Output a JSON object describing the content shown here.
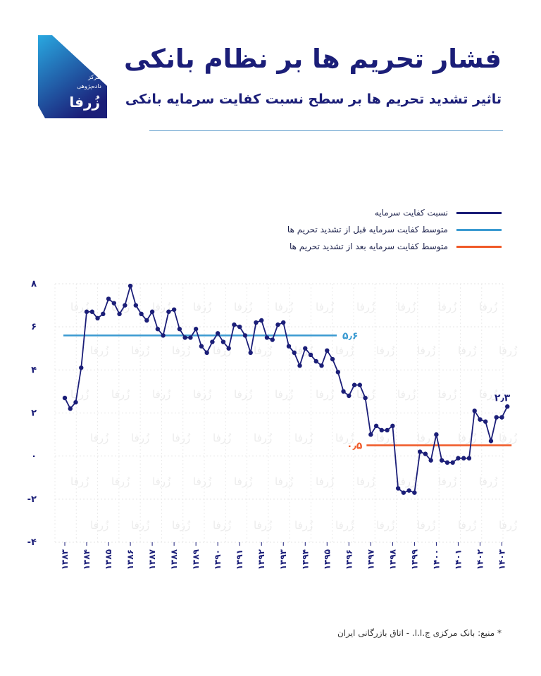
{
  "header": {
    "title": "فشار تحریم ها بر نظام بانکی",
    "subtitle": "تاثیر تشدید تحریم ها بر سطح نسبت کفایت سرمایه بانکی"
  },
  "logo": {
    "line1": "مرکز",
    "line2": "داده‌پژوهی",
    "brand": "زُرفا",
    "color_top": "#29a8e0",
    "color_bottom": "#1b1e78"
  },
  "legend": [
    {
      "label": "نسبت کفایت سرمایه",
      "color": "#1b1e78"
    },
    {
      "label": "متوسط کفایت سرمایه قبل از تشدید تحریم ها",
      "color": "#3a9ad1"
    },
    {
      "label": "متوسط کفایت سرمایه بعد از تشدید تحریم ها",
      "color": "#f05a28"
    }
  ],
  "chart_data": {
    "type": "line",
    "x_ticks": [
      "۱۳۸۳",
      "۱۳۸۴",
      "۱۳۸۵",
      "۱۳۸۶",
      "۱۳۸۷",
      "۱۳۸۸",
      "۱۳۸۹",
      "۱۳۹۰",
      "۱۳۹۱",
      "۱۳۹۲",
      "۱۳۹۳",
      "۱۳۹۴",
      "۱۳۹۵",
      "۱۳۹۶",
      "۱۳۹۷",
      "۱۳۹۸",
      "۱۳۹۹",
      "۱۴۰۰",
      "۱۴۰۱",
      "۱۴۰۲",
      "۱۴۰۳"
    ],
    "y_ticks": [
      "۸",
      "۶",
      "۴",
      "۲",
      "۰",
      "-۲",
      "-۴"
    ],
    "ylim": [
      -4,
      8
    ],
    "series": [
      {
        "name": "نسبت کفایت سرمایه",
        "color": "#1b1e78",
        "x": [
          1383,
          1383.25,
          1383.5,
          1383.75,
          1384,
          1384.25,
          1384.5,
          1384.75,
          1385,
          1385.25,
          1385.5,
          1385.75,
          1386,
          1386.25,
          1386.5,
          1386.75,
          1387,
          1387.25,
          1387.5,
          1387.75,
          1388,
          1388.25,
          1388.5,
          1388.75,
          1389,
          1389.25,
          1389.5,
          1389.75,
          1390,
          1390.25,
          1390.5,
          1390.75,
          1391,
          1391.25,
          1391.5,
          1391.75,
          1392,
          1392.25,
          1392.5,
          1392.75,
          1393,
          1393.25,
          1393.5,
          1393.75,
          1394,
          1394.25,
          1394.5,
          1394.75,
          1395,
          1395.25,
          1395.5,
          1395.75,
          1396,
          1396.25,
          1396.5,
          1396.75,
          1397,
          1397.25,
          1397.5,
          1397.75,
          1398,
          1398.25,
          1398.5,
          1398.75,
          1399,
          1399.25,
          1399.5,
          1399.75,
          1400,
          1400.25,
          1400.5,
          1400.75,
          1401,
          1401.25,
          1401.5,
          1401.75,
          1402,
          1402.25,
          1402.5,
          1402.75,
          1403,
          1403.25
        ],
        "values": [
          2.7,
          2.2,
          2.5,
          4.1,
          6.7,
          6.7,
          6.4,
          6.6,
          7.3,
          7.1,
          6.6,
          7.0,
          7.9,
          7.0,
          6.6,
          6.3,
          6.7,
          5.9,
          5.6,
          6.7,
          6.8,
          5.9,
          5.5,
          5.5,
          5.9,
          5.1,
          4.8,
          5.3,
          5.7,
          5.3,
          5.0,
          6.1,
          6.0,
          5.6,
          4.8,
          6.2,
          6.3,
          5.5,
          5.4,
          6.1,
          6.2,
          5.1,
          4.8,
          4.2,
          5.0,
          4.7,
          4.4,
          4.2,
          4.9,
          4.5,
          3.9,
          3.0,
          2.8,
          3.3,
          3.3,
          2.7,
          1.0,
          1.4,
          1.2,
          1.2,
          1.4,
          -1.5,
          -1.7,
          -1.6,
          -1.7,
          0.2,
          0.1,
          -0.2,
          1.0,
          -0.2,
          -0.3,
          -0.3,
          -0.1,
          -0.1,
          -0.1,
          2.1,
          1.7,
          1.6,
          0.7,
          1.8,
          1.8,
          2.3
        ]
      }
    ],
    "before_avg": {
      "value": 5.6,
      "label": "۵٫۶",
      "color": "#3a9ad1",
      "x_from": 1383,
      "x_to": 1395.25
    },
    "after_avg": {
      "value": 0.5,
      "label": "۰٫۵",
      "color": "#f05a28",
      "x_from": 1397,
      "x_to": 1403.25
    },
    "last_label": "۲٫۳",
    "watermark": "زُرفا",
    "grid": true
  },
  "source": "* منبع: بانک مرکزی ج.ا.ا. - اتاق بازرگانی ایران"
}
